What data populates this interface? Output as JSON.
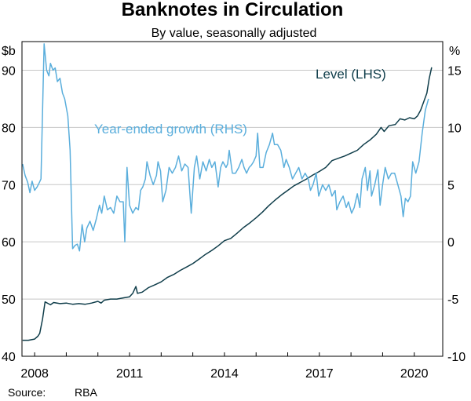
{
  "chart_data": {
    "type": "line",
    "title": "Banknotes in Circulation",
    "subtitle": "By value, seasonally adjusted",
    "source_label": "Source:",
    "source_value": "RBA",
    "y_left": {
      "unit": "$b",
      "ylim": [
        40,
        95
      ],
      "ticks": [
        40,
        50,
        60,
        70,
        80,
        90
      ]
    },
    "y_right": {
      "unit": "%",
      "ylim": [
        -10,
        17.5
      ],
      "ticks": [
        -10,
        -5,
        0,
        5,
        10,
        15
      ]
    },
    "x": {
      "xlim": [
        2007.6,
        2020.9
      ],
      "ticks": [
        2008,
        2011,
        2014,
        2017,
        2020
      ]
    },
    "grid": true,
    "series": [
      {
        "name": "Level (LHS)",
        "axis": "left",
        "color": "#0f3d4a",
        "points": [
          [
            2007.62,
            42.8
          ],
          [
            2007.8,
            42.8
          ],
          [
            2008.0,
            43.0
          ],
          [
            2008.1,
            43.5
          ],
          [
            2008.16,
            44.0
          ],
          [
            2008.25,
            46.5
          ],
          [
            2008.33,
            49.5
          ],
          [
            2008.5,
            49.0
          ],
          [
            2008.6,
            49.4
          ],
          [
            2008.8,
            49.2
          ],
          [
            2009.0,
            49.3
          ],
          [
            2009.2,
            49.1
          ],
          [
            2009.4,
            49.2
          ],
          [
            2009.6,
            49.1
          ],
          [
            2009.8,
            49.3
          ],
          [
            2010.0,
            49.6
          ],
          [
            2010.1,
            49.3
          ],
          [
            2010.2,
            49.8
          ],
          [
            2010.4,
            50.0
          ],
          [
            2010.6,
            50.0
          ],
          [
            2010.8,
            50.2
          ],
          [
            2011.0,
            50.4
          ],
          [
            2011.1,
            51.0
          ],
          [
            2011.2,
            52.2
          ],
          [
            2011.25,
            51.0
          ],
          [
            2011.4,
            51.2
          ],
          [
            2011.6,
            52.0
          ],
          [
            2011.8,
            52.5
          ],
          [
            2012.0,
            53.0
          ],
          [
            2012.2,
            53.8
          ],
          [
            2012.4,
            54.3
          ],
          [
            2012.6,
            55.0
          ],
          [
            2012.8,
            55.6
          ],
          [
            2013.0,
            56.2
          ],
          [
            2013.2,
            57.0
          ],
          [
            2013.4,
            57.8
          ],
          [
            2013.6,
            58.5
          ],
          [
            2013.8,
            59.3
          ],
          [
            2014.0,
            60.2
          ],
          [
            2014.2,
            60.6
          ],
          [
            2014.4,
            61.5
          ],
          [
            2014.6,
            62.5
          ],
          [
            2014.8,
            63.3
          ],
          [
            2015.0,
            64.2
          ],
          [
            2015.2,
            65.2
          ],
          [
            2015.4,
            66.3
          ],
          [
            2015.6,
            67.3
          ],
          [
            2015.8,
            68.2
          ],
          [
            2016.0,
            69.0
          ],
          [
            2016.2,
            69.8
          ],
          [
            2016.4,
            70.4
          ],
          [
            2016.6,
            71.0
          ],
          [
            2016.8,
            71.7
          ],
          [
            2017.0,
            72.3
          ],
          [
            2017.2,
            73.0
          ],
          [
            2017.4,
            74.2
          ],
          [
            2017.6,
            74.6
          ],
          [
            2017.8,
            75.0
          ],
          [
            2018.0,
            75.5
          ],
          [
            2018.2,
            76.0
          ],
          [
            2018.4,
            77.0
          ],
          [
            2018.6,
            77.8
          ],
          [
            2018.8,
            78.8
          ],
          [
            2018.95,
            80.0
          ],
          [
            2019.05,
            79.3
          ],
          [
            2019.2,
            80.3
          ],
          [
            2019.4,
            80.5
          ],
          [
            2019.55,
            81.5
          ],
          [
            2019.7,
            81.3
          ],
          [
            2019.85,
            81.7
          ],
          [
            2020.0,
            81.5
          ],
          [
            2020.1,
            82.0
          ],
          [
            2020.2,
            83.0
          ],
          [
            2020.3,
            84.5
          ],
          [
            2020.4,
            86.0
          ],
          [
            2020.47,
            88.5
          ],
          [
            2020.55,
            90.5
          ]
        ]
      },
      {
        "name": "Year-ended growth (RHS)",
        "axis": "right",
        "color": "#5aaedc",
        "points": [
          [
            2007.62,
            6.8
          ],
          [
            2007.7,
            5.8
          ],
          [
            2007.78,
            5.2
          ],
          [
            2007.85,
            4.3
          ],
          [
            2007.92,
            5.3
          ],
          [
            2008.0,
            4.5
          ],
          [
            2008.08,
            4.8
          ],
          [
            2008.15,
            5.2
          ],
          [
            2008.2,
            5.5
          ],
          [
            2008.3,
            17.3
          ],
          [
            2008.38,
            15.0
          ],
          [
            2008.45,
            14.5
          ],
          [
            2008.5,
            15.6
          ],
          [
            2008.58,
            15.0
          ],
          [
            2008.65,
            15.2
          ],
          [
            2008.72,
            14.0
          ],
          [
            2008.8,
            14.3
          ],
          [
            2008.88,
            13.0
          ],
          [
            2008.95,
            12.5
          ],
          [
            2009.05,
            11.0
          ],
          [
            2009.12,
            8.0
          ],
          [
            2009.2,
            -0.6
          ],
          [
            2009.28,
            -0.3
          ],
          [
            2009.35,
            -0.2
          ],
          [
            2009.42,
            -0.8
          ],
          [
            2009.5,
            1.5
          ],
          [
            2009.58,
            0.0
          ],
          [
            2009.65,
            1.2
          ],
          [
            2009.75,
            1.8
          ],
          [
            2009.85,
            1.0
          ],
          [
            2009.95,
            2.0
          ],
          [
            2010.05,
            3.2
          ],
          [
            2010.12,
            2.5
          ],
          [
            2010.2,
            4.0
          ],
          [
            2010.3,
            2.8
          ],
          [
            2010.4,
            3.0
          ],
          [
            2010.5,
            2.5
          ],
          [
            2010.6,
            4.0
          ],
          [
            2010.7,
            3.5
          ],
          [
            2010.8,
            3.5
          ],
          [
            2010.85,
            0.0
          ],
          [
            2010.92,
            6.5
          ],
          [
            2011.0,
            3.2
          ],
          [
            2011.1,
            2.5
          ],
          [
            2011.2,
            3.0
          ],
          [
            2011.28,
            2.8
          ],
          [
            2011.35,
            4.5
          ],
          [
            2011.42,
            4.8
          ],
          [
            2011.5,
            5.5
          ],
          [
            2011.55,
            7.0
          ],
          [
            2011.65,
            5.8
          ],
          [
            2011.75,
            5.0
          ],
          [
            2011.85,
            5.8
          ],
          [
            2011.9,
            7.0
          ],
          [
            2011.98,
            6.2
          ],
          [
            2012.05,
            3.5
          ],
          [
            2012.15,
            4.5
          ],
          [
            2012.25,
            6.5
          ],
          [
            2012.35,
            6.0
          ],
          [
            2012.45,
            6.5
          ],
          [
            2012.55,
            7.5
          ],
          [
            2012.65,
            6.2
          ],
          [
            2012.75,
            6.8
          ],
          [
            2012.85,
            6.5
          ],
          [
            2012.95,
            2.5
          ],
          [
            2013.05,
            6.5
          ],
          [
            2013.12,
            7.5
          ],
          [
            2013.22,
            5.5
          ],
          [
            2013.32,
            7.0
          ],
          [
            2013.42,
            6.2
          ],
          [
            2013.52,
            7.2
          ],
          [
            2013.6,
            6.5
          ],
          [
            2013.7,
            7.0
          ],
          [
            2013.8,
            4.8
          ],
          [
            2013.88,
            6.5
          ],
          [
            2013.95,
            7.0
          ],
          [
            2014.05,
            6.5
          ],
          [
            2014.1,
            6.8
          ],
          [
            2014.15,
            8.0
          ],
          [
            2014.25,
            6.0
          ],
          [
            2014.35,
            6.0
          ],
          [
            2014.45,
            6.5
          ],
          [
            2014.55,
            7.2
          ],
          [
            2014.62,
            6.5
          ],
          [
            2014.7,
            6.0
          ],
          [
            2014.78,
            6.5
          ],
          [
            2014.85,
            6.7
          ],
          [
            2014.92,
            7.0
          ],
          [
            2015.0,
            7.5
          ],
          [
            2015.05,
            9.5
          ],
          [
            2015.12,
            6.5
          ],
          [
            2015.22,
            6.5
          ],
          [
            2015.32,
            7.8
          ],
          [
            2015.42,
            8.5
          ],
          [
            2015.52,
            9.5
          ],
          [
            2015.58,
            8.5
          ],
          [
            2015.68,
            8.5
          ],
          [
            2015.78,
            8.0
          ],
          [
            2015.88,
            6.5
          ],
          [
            2015.95,
            7.2
          ],
          [
            2016.05,
            6.5
          ],
          [
            2016.15,
            5.5
          ],
          [
            2016.25,
            6.0
          ],
          [
            2016.35,
            6.5
          ],
          [
            2016.45,
            5.5
          ],
          [
            2016.55,
            6.0
          ],
          [
            2016.65,
            5.5
          ],
          [
            2016.72,
            4.5
          ],
          [
            2016.8,
            5.0
          ],
          [
            2016.9,
            6.0
          ],
          [
            2016.98,
            4.0
          ],
          [
            2017.1,
            5.0
          ],
          [
            2017.2,
            4.5
          ],
          [
            2017.3,
            5.0
          ],
          [
            2017.4,
            4.0
          ],
          [
            2017.5,
            4.5
          ],
          [
            2017.55,
            2.8
          ],
          [
            2017.65,
            3.5
          ],
          [
            2017.75,
            4.0
          ],
          [
            2017.85,
            3.0
          ],
          [
            2017.92,
            3.5
          ],
          [
            2018.02,
            2.5
          ],
          [
            2018.1,
            3.0
          ],
          [
            2018.2,
            4.2
          ],
          [
            2018.28,
            3.0
          ],
          [
            2018.35,
            5.5
          ],
          [
            2018.45,
            6.5
          ],
          [
            2018.52,
            4.5
          ],
          [
            2018.6,
            6.2
          ],
          [
            2018.65,
            4.0
          ],
          [
            2018.75,
            5.0
          ],
          [
            2018.85,
            6.3
          ],
          [
            2018.92,
            3.2
          ],
          [
            2019.0,
            5.0
          ],
          [
            2019.08,
            6.5
          ],
          [
            2019.18,
            5.5
          ],
          [
            2019.28,
            6.0
          ],
          [
            2019.38,
            6.0
          ],
          [
            2019.48,
            5.0
          ],
          [
            2019.58,
            4.0
          ],
          [
            2019.65,
            2.2
          ],
          [
            2019.72,
            3.8
          ],
          [
            2019.8,
            3.5
          ],
          [
            2019.88,
            4.0
          ],
          [
            2019.95,
            7.0
          ],
          [
            2020.05,
            6.0
          ],
          [
            2020.15,
            7.0
          ],
          [
            2020.25,
            9.5
          ],
          [
            2020.35,
            11.5
          ],
          [
            2020.45,
            12.5
          ]
        ]
      }
    ]
  }
}
